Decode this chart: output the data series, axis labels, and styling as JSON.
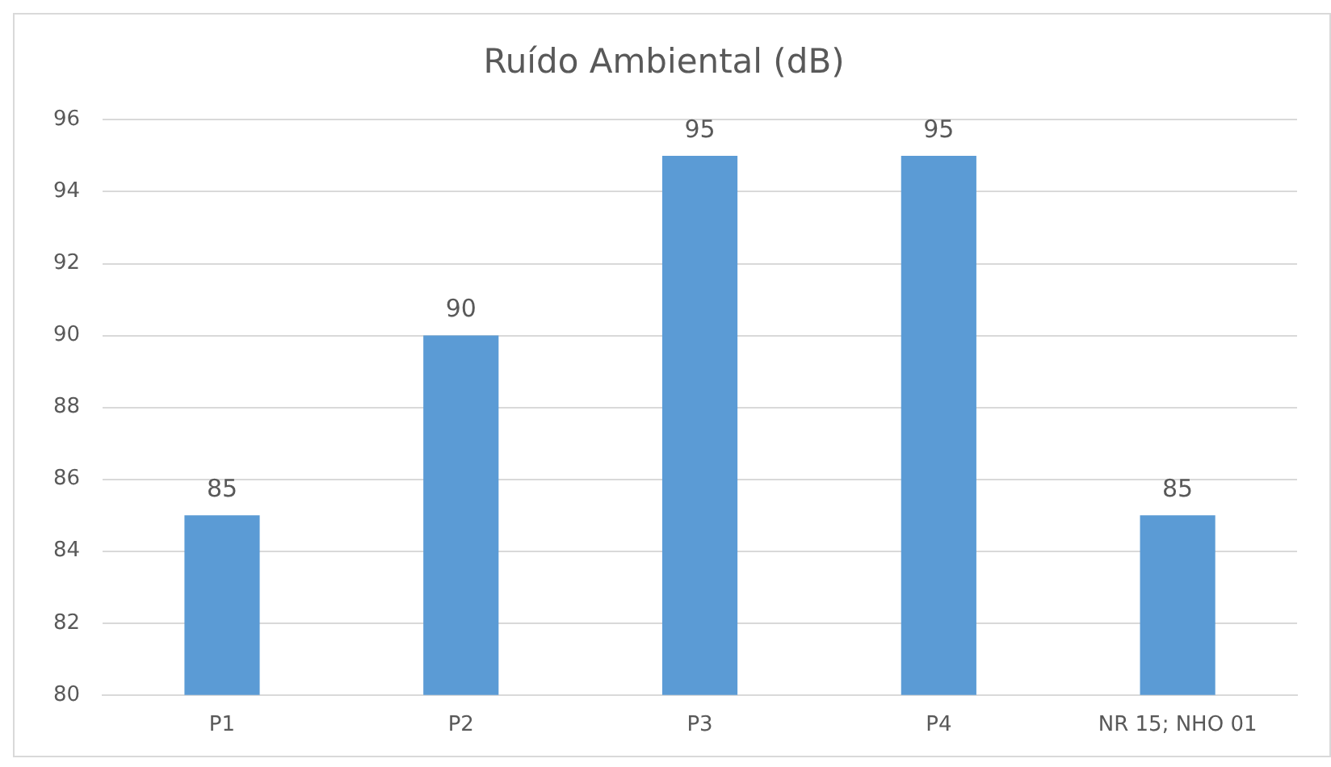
{
  "chart_data": {
    "type": "bar",
    "title": "Ruído Ambiental (dB)",
    "categories": [
      "P1",
      "P2",
      "P3",
      "P4",
      "NR 15; NHO 01"
    ],
    "values": [
      85,
      90,
      95,
      95,
      85
    ],
    "color": "#5b9bd5",
    "ylim": [
      80,
      96
    ],
    "yticks": [
      80,
      82,
      84,
      86,
      88,
      90,
      92,
      94,
      96
    ],
    "grid": "y",
    "data_labels": true
  }
}
